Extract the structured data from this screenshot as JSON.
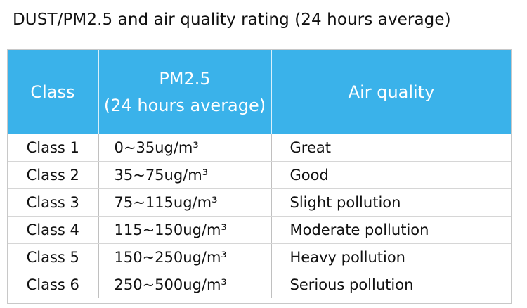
{
  "title": "DUST/PM2.5 and air quality rating (24 hours average)",
  "table": {
    "headers": {
      "class": "Class",
      "pm_line1": "PM2.5",
      "pm_line2": "(24 hours average)",
      "air_quality": "Air quality"
    },
    "rows": [
      {
        "class": "Class 1",
        "pm": "0~35ug/m³",
        "air_quality": "Great"
      },
      {
        "class": "Class 2",
        "pm": "35~75ug/m³",
        "air_quality": "Good"
      },
      {
        "class": "Class 3",
        "pm": "75~115ug/m³",
        "air_quality": "Slight pollution"
      },
      {
        "class": "Class 4",
        "pm": "115~150ug/m³",
        "air_quality": "Moderate pollution"
      },
      {
        "class": "Class 5",
        "pm": "150~250ug/m³",
        "air_quality": "Heavy pollution"
      },
      {
        "class": "Class 6",
        "pm": "250~500ug/m³",
        "air_quality": "Serious pollution"
      }
    ]
  },
  "colors": {
    "header_background": "#3ab2ea",
    "header_text": "#ffffff",
    "body_text": "#111111",
    "grid_line": "#c0c0c0"
  }
}
